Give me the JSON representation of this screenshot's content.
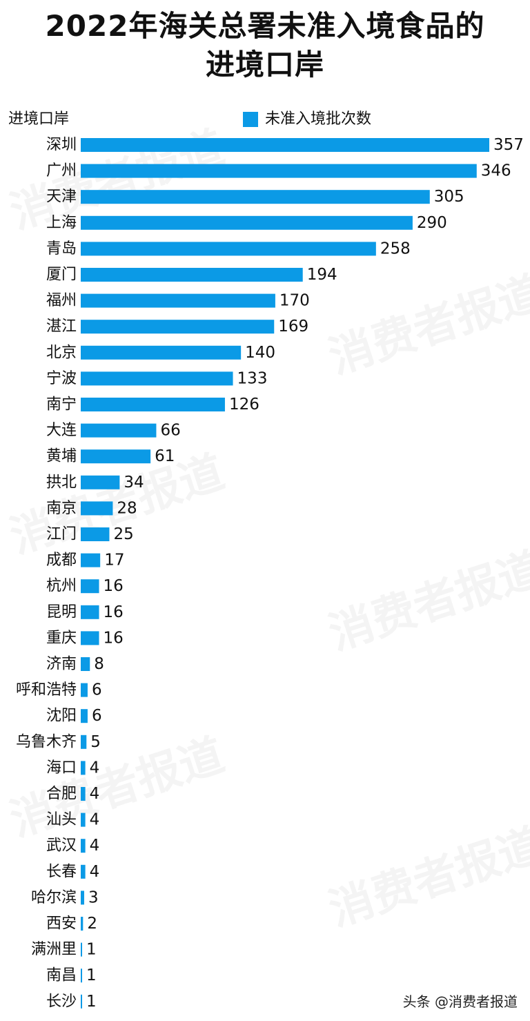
{
  "title_line1": "2022年海关总署未准入境食品的",
  "title_line2": "进境口岸",
  "watermark_text": "消费者报道",
  "footer": "头条 @消费者报道",
  "colors": {
    "bar": "#0b9ae6",
    "text": "#111111"
  },
  "chart_data": {
    "type": "bar",
    "orientation": "horizontal",
    "ylabel": "进境口岸",
    "categories": [
      "深圳",
      "广州",
      "天津",
      "上海",
      "青岛",
      "厦门",
      "福州",
      "湛江",
      "北京",
      "宁波",
      "南宁",
      "大连",
      "黄埔",
      "拱北",
      "南京",
      "江门",
      "成都",
      "杭州",
      "昆明",
      "重庆",
      "济南",
      "呼和浩特",
      "沈阳",
      "乌鲁木齐",
      "海口",
      "合肥",
      "汕头",
      "武汉",
      "长春",
      "哈尔滨",
      "西安",
      "满洲里",
      "南昌",
      "长沙"
    ],
    "series": [
      {
        "name": "未准入境批次数",
        "values": [
          357,
          346,
          305,
          290,
          258,
          194,
          170,
          169,
          140,
          133,
          126,
          66,
          61,
          34,
          28,
          25,
          17,
          16,
          16,
          16,
          8,
          6,
          6,
          5,
          4,
          4,
          4,
          4,
          4,
          3,
          2,
          1,
          1,
          1
        ]
      }
    ],
    "xlim": [
      0,
      357
    ],
    "legend": "top",
    "grid": false
  }
}
